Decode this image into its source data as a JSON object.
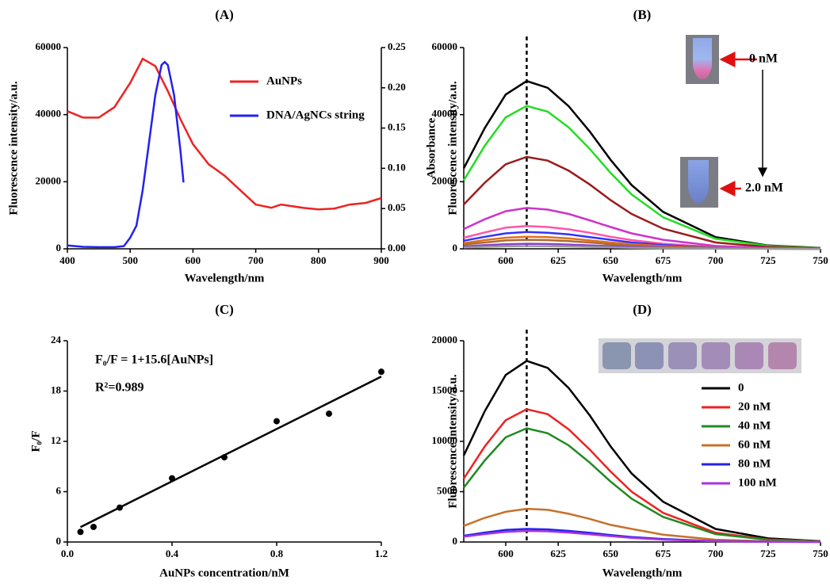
{
  "chart_data": [
    {
      "type": "line",
      "title": "(A)",
      "x_label": "Wavelength/nm",
      "y_label": "Fluorescence intensity/a.u.",
      "y2_label": "Absorbance",
      "xlim": [
        400,
        900
      ],
      "xticks": [
        400,
        500,
        600,
        700,
        800,
        900
      ],
      "ylim": [
        0,
        60000
      ],
      "yticks": [
        0,
        20000,
        40000,
        60000
      ],
      "y2lim": [
        0,
        0.25
      ],
      "y2ticks": [
        {
          "value": 0,
          "label": "0.00"
        },
        0.05,
        {
          "value": 0.1,
          "label": "0.10"
        },
        0.15,
        {
          "value": 0.2,
          "label": "0.20"
        },
        0.25
      ],
      "legend": "upper right",
      "series": [
        {
          "name": "AuNPs",
          "color": "#ee2222",
          "axis": "y2",
          "x": [
            400,
            425,
            450,
            475,
            500,
            520,
            540,
            560,
            580,
            600,
            625,
            650,
            675,
            700,
            725,
            740,
            775,
            800,
            825,
            850,
            875,
            900
          ],
          "values": [
            0.171,
            0.163,
            0.163,
            0.176,
            0.206,
            0.236,
            0.227,
            0.196,
            0.161,
            0.13,
            0.105,
            0.091,
            0.073,
            0.055,
            0.051,
            0.055,
            0.051,
            0.049,
            0.05,
            0.055,
            0.057,
            0.063
          ]
        },
        {
          "name": "DNA/AgNCs string",
          "color": "#2222ee",
          "x": [
            400,
            425,
            450,
            475,
            490,
            500,
            510,
            520,
            530,
            540,
            550,
            555,
            560,
            570,
            580,
            585
          ],
          "values": [
            1000,
            600,
            500,
            500,
            800,
            3300,
            6900,
            17500,
            31700,
            45800,
            54800,
            55700,
            54800,
            45800,
            29300,
            19800
          ]
        }
      ]
    },
    {
      "type": "line",
      "title": "(B)",
      "x_label": "Wavelength/nm",
      "y_label": "Fluorescence intensity/a.u.",
      "xlim": [
        580,
        750
      ],
      "xticks": [
        600,
        625,
        650,
        675,
        700,
        725,
        750
      ],
      "ylim": [
        0,
        60000
      ],
      "yticks": [
        0,
        20000,
        40000,
        60000
      ],
      "vline": 610,
      "annotations": [
        "0 nM",
        "2.0 nM"
      ],
      "x": [
        580,
        590,
        600,
        610,
        620,
        630,
        640,
        650,
        660,
        675,
        700,
        725,
        750
      ],
      "series": [
        {
          "color": "#000000",
          "values": [
            24000,
            36000,
            46000,
            50000,
            48000,
            42500,
            35000,
            26500,
            19000,
            11000,
            3500,
            1000,
            250
          ]
        },
        {
          "color": "#22dd22",
          "values": [
            20400,
            30700,
            39200,
            42600,
            40900,
            36200,
            29800,
            22600,
            16200,
            9400,
            3000,
            850,
            210
          ]
        },
        {
          "color": "#9b1c1c",
          "values": [
            13200,
            19700,
            25200,
            27400,
            26300,
            23300,
            19200,
            14500,
            10400,
            6000,
            1900,
            550,
            140
          ]
        },
        {
          "color": "#cc33cc",
          "values": [
            5900,
            8800,
            11200,
            12200,
            11700,
            10400,
            8500,
            6500,
            4600,
            2700,
            850,
            240,
            60
          ]
        },
        {
          "color": "#ff55aa",
          "values": [
            3300,
            4900,
            6300,
            6800,
            6500,
            5800,
            4800,
            3600,
            2600,
            1500,
            480,
            140,
            30
          ]
        },
        {
          "color": "#3333ff",
          "values": [
            2400,
            3600,
            4600,
            5000,
            4800,
            4300,
            3500,
            2700,
            1900,
            1100,
            350,
            100,
            25
          ]
        },
        {
          "color": "#e07020",
          "values": [
            1700,
            2600,
            3300,
            3600,
            3500,
            3100,
            2500,
            1900,
            1400,
            800,
            250,
            70,
            20
          ]
        },
        {
          "color": "#b06a2c",
          "values": [
            1300,
            1900,
            2500,
            2700,
            2600,
            2300,
            1900,
            1400,
            1000,
            590,
            190,
            50,
            10
          ]
        },
        {
          "color": "#8844cc",
          "values": [
            720,
            1080,
            1380,
            1500,
            1440,
            1280,
            1050,
            800,
            570,
            330,
            110,
            30,
            10
          ]
        },
        {
          "color": "#999999",
          "values": [
            380,
            580,
            740,
            800,
            770,
            680,
            560,
            420,
            300,
            180,
            60,
            20,
            0
          ]
        }
      ]
    },
    {
      "type": "scatter",
      "title": "(C)",
      "x_label": "AuNPs concentration/nM",
      "y_label": "F₀/F",
      "xlim": [
        0,
        1.2
      ],
      "xticks": [
        {
          "value": 0,
          "label": "0.0"
        },
        0.4,
        0.8,
        1.2
      ],
      "ylim": [
        0,
        24
      ],
      "yticks": [
        0,
        6,
        12,
        18,
        24
      ],
      "annotations": [
        "F₀/F = 1+15.6[AuNPs]",
        "R²=0.989"
      ],
      "color": "#000000",
      "x": [
        0.05,
        0.1,
        0.2,
        0.4,
        0.6,
        0.8,
        1.0,
        1.2
      ],
      "values": [
        1.2,
        1.8,
        4.1,
        7.6,
        10.1,
        14.4,
        15.3,
        20.3
      ],
      "fit": {
        "x": [
          0.05,
          1.2
        ],
        "values": [
          1.78,
          19.72
        ]
      }
    },
    {
      "type": "line",
      "title": "(D)",
      "x_label": "Wavelength/nm",
      "y_label": "Fluorescence intensity/a.u.",
      "xlim": [
        580,
        750
      ],
      "xticks": [
        600,
        625,
        650,
        675,
        700,
        725,
        750
      ],
      "ylim": [
        0,
        20000
      ],
      "yticks": [
        0,
        5000,
        10000,
        15000,
        20000
      ],
      "vline": 610,
      "legend": "lower right",
      "x": [
        580,
        590,
        600,
        610,
        620,
        630,
        640,
        650,
        660,
        675,
        700,
        725,
        750
      ],
      "series": [
        {
          "name": "0",
          "color": "#000000",
          "values": [
            8600,
            13000,
            16600,
            18000,
            17300,
            15300,
            12600,
            9500,
            6800,
            4000,
            1300,
            360,
            90
          ]
        },
        {
          "name": "20 nM",
          "color": "#ee2222",
          "values": [
            6300,
            9500,
            12100,
            13200,
            12700,
            11200,
            9200,
            7000,
            5000,
            2900,
            920,
            260,
            70
          ]
        },
        {
          "name": "40 nM",
          "color": "#1f8a1f",
          "values": [
            5400,
            8100,
            10400,
            11300,
            10800,
            9600,
            7900,
            6000,
            4300,
            2500,
            790,
            230,
            60
          ]
        },
        {
          "name": "60 nM",
          "color": "#c8702a",
          "values": [
            1600,
            2400,
            3000,
            3300,
            3200,
            2800,
            2300,
            1700,
            1300,
            730,
            230,
            70,
            20
          ]
        },
        {
          "name": "80 nM",
          "color": "#2222ee",
          "values": [
            620,
            940,
            1200,
            1300,
            1250,
            1100,
            910,
            690,
            490,
            290,
            90,
            30,
            10
          ]
        },
        {
          "name": "100 nM",
          "color": "#aa33dd",
          "values": [
            530,
            790,
            1010,
            1100,
            1060,
            940,
            770,
            580,
            420,
            240,
            80,
            20,
            10
          ]
        }
      ]
    }
  ]
}
